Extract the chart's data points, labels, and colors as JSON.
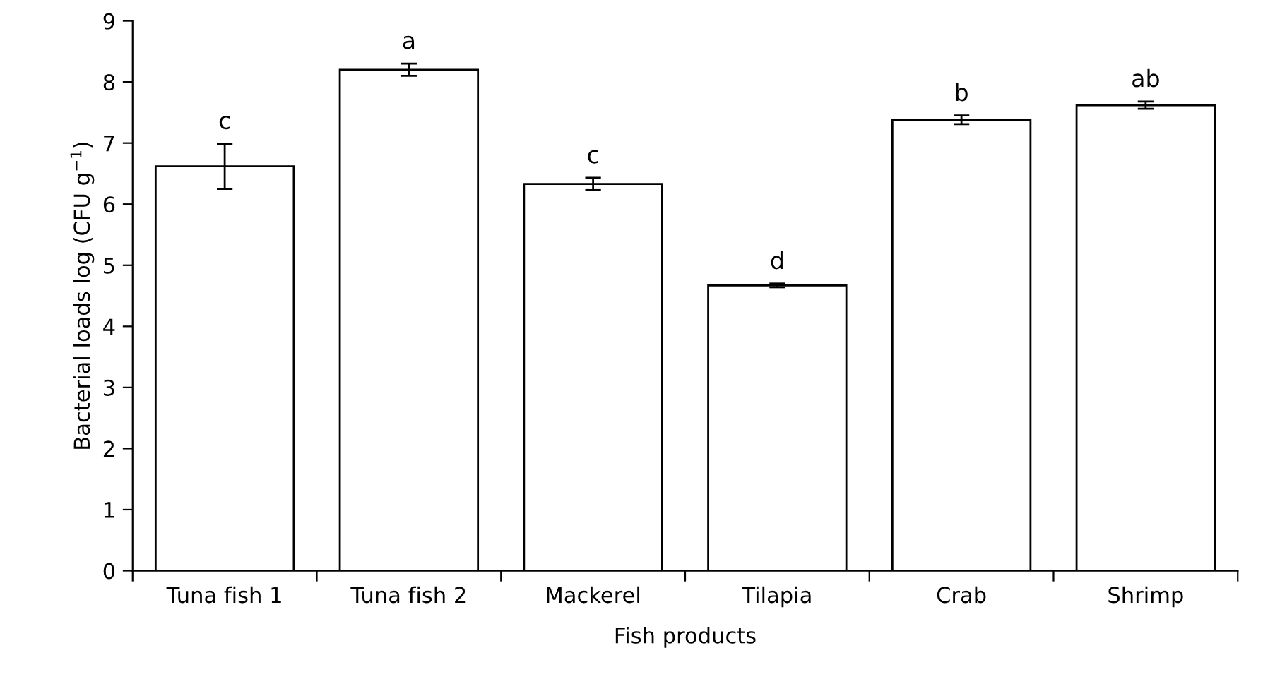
{
  "chart_data": {
    "type": "bar",
    "xlabel": "Fish products",
    "ylabel": "Bacterial loads log (CFU g$^{−1}$)",
    "categories": [
      "Tuna fish 1",
      "Tuna fish 2",
      "Mackerel",
      "Tilapia",
      "Crab",
      "Shrimp"
    ],
    "values": [
      6.62,
      8.2,
      6.33,
      4.67,
      7.38,
      7.62
    ],
    "errors": [
      0.37,
      0.1,
      0.1,
      0.03,
      0.07,
      0.06
    ],
    "color": "#ffffff",
    "ylim": [
      0,
      9
    ],
    "yticks": [
      0,
      1,
      2,
      3,
      4,
      5,
      6,
      7,
      8,
      9
    ],
    "grid": false,
    "legend": false,
    "annotations": [
      {
        "text": "c",
        "x": "Tuna fish 1",
        "y": 6.99
      },
      {
        "text": "a",
        "x": "Tuna fish 2",
        "y": 8.3
      },
      {
        "text": "c",
        "x": "Mackerel",
        "y": 6.43
      },
      {
        "text": "d",
        "x": "Tilapia",
        "y": 4.7
      },
      {
        "text": "b",
        "x": "Crab",
        "y": 7.45
      },
      {
        "text": "ab",
        "x": "Shrimp",
        "y": 7.68
      }
    ]
  }
}
